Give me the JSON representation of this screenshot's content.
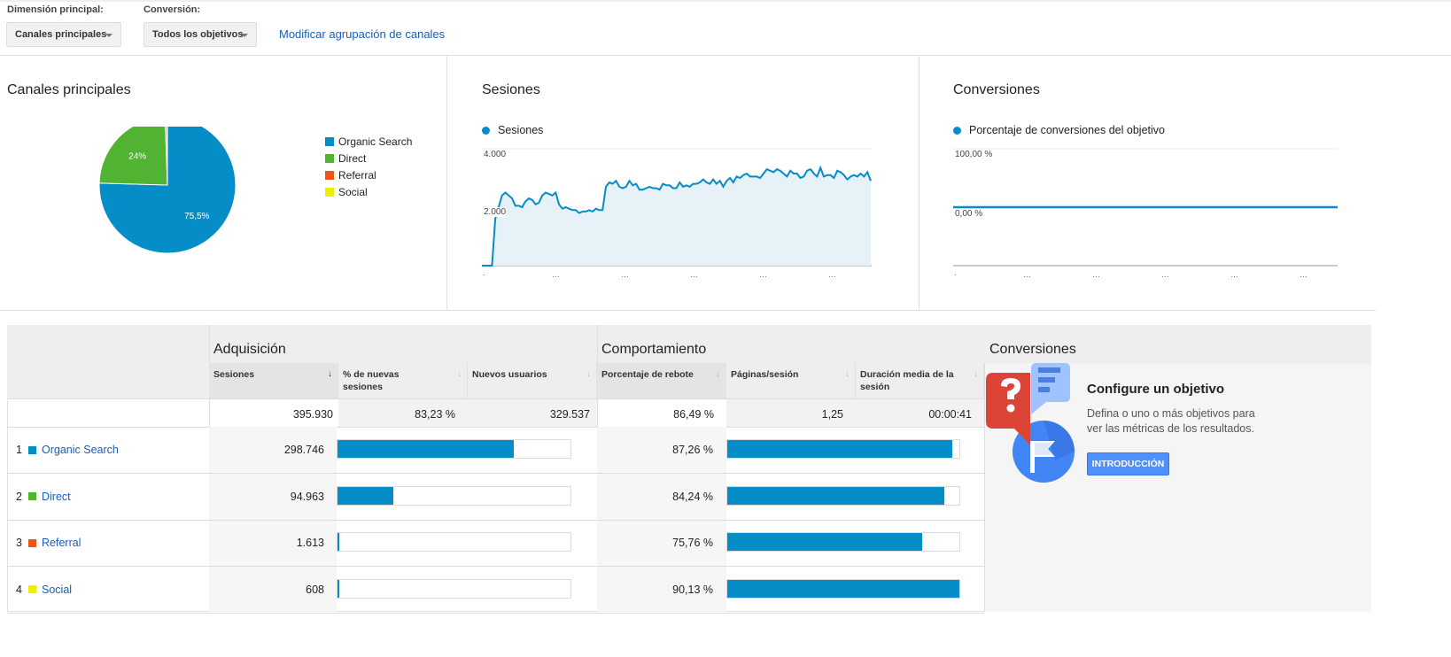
{
  "toolbar": {
    "dimension_label": "Dimensión principal:",
    "dimension_value": "Canales principales",
    "conversion_label": "Conversión:",
    "conversion_value": "Todos los objetivos",
    "modify_link": "Modificar agrupación de canales"
  },
  "colors": {
    "organic": "#058dc7",
    "direct": "#50b432",
    "referral": "#ed561b",
    "social": "#edef00",
    "accent": "#058dc7"
  },
  "chart_data": [
    {
      "type": "pie",
      "title": "Canales principales",
      "categories": [
        "Organic Search",
        "Direct",
        "Referral",
        "Social"
      ],
      "values": [
        75.5,
        24,
        0.4,
        0.15
      ],
      "data_labels": [
        "75,5%",
        "24%",
        "",
        ""
      ],
      "legend": "right"
    },
    {
      "type": "area",
      "title": "Sesiones",
      "series": [
        {
          "name": "Sesiones",
          "values": [
            0,
            0,
            0,
            0,
            1600,
            2000,
            2400,
            2500,
            2400,
            2300,
            2050,
            2050,
            2000,
            2200,
            2300,
            2250,
            2100,
            2150,
            2400,
            2500,
            2450,
            2400,
            2500,
            2100,
            1950,
            2000,
            1950,
            1900,
            1900,
            1800,
            1850,
            1850,
            1900,
            1850,
            1950,
            1900,
            1900,
            2700,
            2850,
            2800,
            2900,
            2700,
            2650,
            2700,
            2900,
            2750,
            2800,
            2600,
            2600,
            2650,
            2700,
            2650,
            2650,
            2600,
            2800,
            2750,
            2750,
            2650,
            2650,
            2850,
            2700,
            2750,
            2700,
            2800,
            2800,
            2850,
            2950,
            2850,
            2800,
            2950,
            2800,
            2900,
            2700,
            2900,
            3000,
            2850,
            3050,
            3000,
            3100,
            3150,
            3050,
            3050,
            3050,
            3000,
            3150,
            3300,
            3250,
            3200,
            3300,
            3250,
            3150,
            3050,
            3250,
            3150,
            3150,
            3000,
            3050,
            3250,
            3300,
            3150,
            3050,
            3350,
            3050,
            3100,
            3100,
            3000,
            3250,
            3200,
            3100,
            2950,
            3050,
            3100,
            3050,
            3150,
            3050,
            3200,
            2900
          ]
        }
      ],
      "yticks": [
        "4.000",
        "2.000"
      ],
      "ylim": [
        0,
        4000
      ],
      "xtick_labels": [
        "·",
        "…",
        "…",
        "…",
        "…",
        "…"
      ],
      "grid": true
    },
    {
      "type": "line",
      "title": "Conversiones",
      "series": [
        {
          "name": "Porcentaje de conversiones del objetivo",
          "values": [
            0,
            0
          ]
        }
      ],
      "yticks": [
        "100,00 %",
        "0,00 %"
      ],
      "ylim": [
        -100,
        100
      ],
      "xtick_labels": [
        "·",
        "…",
        "…",
        "…",
        "…",
        "…"
      ],
      "grid": true
    }
  ],
  "table": {
    "groups": [
      "Adquisición",
      "Comportamiento",
      "Conversiones"
    ],
    "columns": [
      "Sesiones",
      "% de nuevas sesiones",
      "Nuevos usuarios",
      "Porcentaje de rebote",
      "Páginas/sesión",
      "Duración media de la sesión"
    ],
    "totals": [
      "395.930",
      "83,23 %",
      "329.537",
      "86,49 %",
      "1,25",
      "00:00:41"
    ],
    "rows": [
      {
        "idx": "1",
        "name": "Organic Search",
        "sessions": "298.746",
        "sessions_share": 0.755,
        "bounce": "87,26 %",
        "bounce_fraction": 0.968,
        "color": "#058dc7"
      },
      {
        "idx": "2",
        "name": "Direct",
        "sessions": "94.963",
        "sessions_share": 0.24,
        "bounce": "84,24 %",
        "bounce_fraction": 0.935,
        "color": "#50b432"
      },
      {
        "idx": "3",
        "name": "Referral",
        "sessions": "1.613",
        "sessions_share": 0.004,
        "bounce": "75,76 %",
        "bounce_fraction": 0.84,
        "color": "#ed561b"
      },
      {
        "idx": "4",
        "name": "Social",
        "sessions": "608",
        "sessions_share": 0.0015,
        "bounce": "90,13 %",
        "bounce_fraction": 1.0,
        "color": "#edef00"
      }
    ]
  },
  "goal": {
    "title": "Configure un objetivo",
    "desc_line1": "Defina o uno o más objetivos para",
    "desc_line2": "ver las métricas de los resultados.",
    "button": "INTRODUCCIÓN"
  }
}
